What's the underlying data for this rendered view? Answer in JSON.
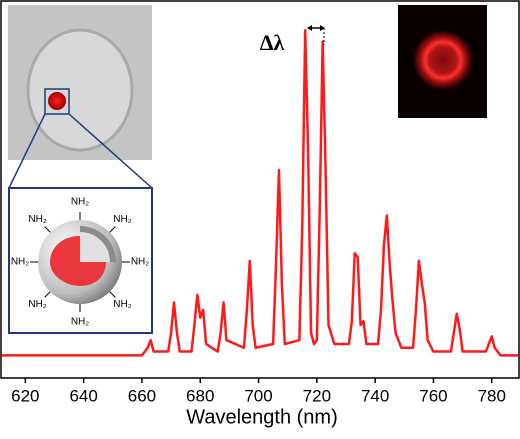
{
  "chart_data": {
    "type": "line",
    "xlabel": "Wavelength (nm)",
    "annotation": "Δλ",
    "inset_labels": [
      "NH₂",
      "NH₂",
      "NH₂",
      "NH₂",
      "NH₂",
      "NH₂",
      "NH₂",
      "NH₂"
    ],
    "xlim": [
      612,
      789
    ],
    "xticks": [
      620,
      640,
      660,
      680,
      700,
      720,
      740,
      760,
      780
    ],
    "ylim": [
      0,
      100
    ],
    "series": [
      {
        "color": "#ff1a1a",
        "x": [
          612,
          660,
          662,
          663,
          664,
          669,
          670,
          671,
          672,
          673,
          677,
          678,
          679,
          680,
          681,
          682,
          686,
          687,
          688,
          689,
          695,
          696,
          697,
          698,
          699,
          705,
          706,
          707,
          708,
          709,
          714,
          715,
          716,
          717,
          718,
          719,
          720,
          721,
          722,
          723,
          724,
          726,
          731,
          732,
          733,
          734,
          735,
          736,
          737,
          741,
          742,
          743,
          744,
          745,
          746,
          747,
          749,
          753,
          754,
          755,
          756,
          757,
          758,
          760,
          766,
          767,
          768,
          769,
          770,
          778,
          779,
          780,
          781,
          783,
          789
        ],
        "values": [
          6,
          6,
          8,
          10,
          7,
          7,
          12,
          20,
          12,
          7,
          7,
          14,
          22,
          16,
          18,
          9,
          7,
          12,
          20,
          10,
          8,
          18,
          31,
          14,
          8,
          9,
          30,
          55,
          25,
          9,
          10,
          40,
          92,
          60,
          12,
          9,
          10,
          45,
          89,
          55,
          14,
          9,
          9,
          15,
          33,
          32,
          14,
          15,
          9,
          9,
          18,
          35,
          43,
          30,
          20,
          12,
          8,
          8,
          18,
          31,
          25,
          20,
          10,
          7,
          7,
          12,
          17,
          13,
          7,
          7,
          9,
          11,
          8,
          6,
          6
        ]
      }
    ]
  }
}
